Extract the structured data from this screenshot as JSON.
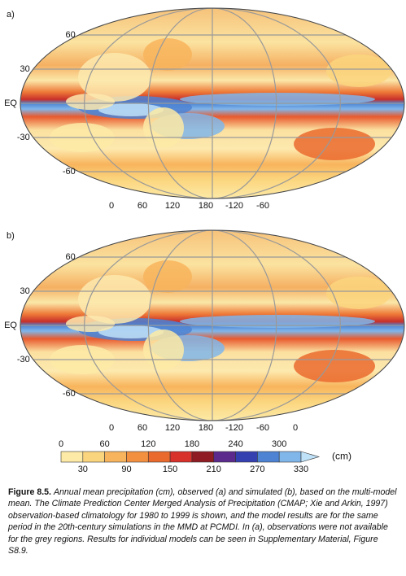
{
  "panels": [
    {
      "label": "a)",
      "lat_labels": [
        "60",
        "30",
        "EQ",
        "-30",
        "-60"
      ],
      "lon_labels": [
        "0",
        "60",
        "120",
        "180",
        "-120",
        "-60"
      ]
    },
    {
      "label": "b)",
      "lat_labels": [
        "60",
        "30",
        "EQ",
        "-30",
        "-60"
      ],
      "lon_labels": [
        "0",
        "60",
        "120",
        "180",
        "-120",
        "-60",
        "0"
      ]
    }
  ],
  "colorbar": {
    "top_labels": [
      "0",
      "60",
      "120",
      "180",
      "240",
      "300"
    ],
    "bottom_labels": [
      "30",
      "90",
      "150",
      "210",
      "270",
      "330"
    ],
    "unit": "(cm)",
    "colors": [
      "#fdeaa6",
      "#fbd57e",
      "#f8b45c",
      "#f39040",
      "#ea6a2e",
      "#d8302a",
      "#8e1c22",
      "#5b2a8c",
      "#3540b0",
      "#4d83d2",
      "#80b6ea",
      "#bfe2f8"
    ]
  },
  "caption": {
    "label": "Figure 8.5.",
    "text": "Annual mean precipitation (cm), observed (a) and simulated (b), based on the multi-model mean. The Climate Prediction Center Merged Analysis of Precipitation (CMAP; Xie and Arkin, 1997) observation-based climatology for 1980 to 1999 is shown, and the model results are for the same period in the 20th-century simulations in the MMD at PCMDI. In (a), observations were not available for the grey regions. Results for individual models can be seen in Supplementary Material, Figure S8.9."
  }
}
